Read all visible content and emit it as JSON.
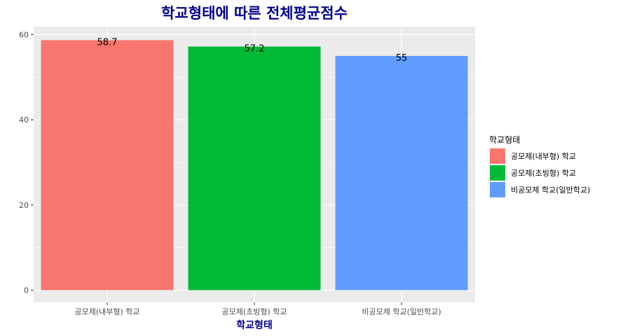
{
  "chart_data": {
    "type": "bar",
    "title": "학교형태에 따른 전체평균점수",
    "xlabel": "학교형태",
    "ylabel": "",
    "categories": [
      "공모제(내부형) 학교",
      "공모제(초빙형) 학교",
      "비공모제 학교(일반학교)"
    ],
    "values": [
      58.7,
      57.2,
      55
    ],
    "data_labels": [
      "58.7",
      "57.2",
      "55"
    ],
    "colors": [
      "#F8766D",
      "#00BA38",
      "#619CFF"
    ],
    "ylim": [
      0,
      62
    ],
    "yticks": [
      0,
      20,
      40,
      60
    ],
    "grid": true,
    "legend": {
      "title": "학교형태",
      "position": "right",
      "entries": [
        "공모제(내부형) 학교",
        "공모제(초빙형) 학교",
        "비공모제 학교(일반학교)"
      ]
    }
  }
}
